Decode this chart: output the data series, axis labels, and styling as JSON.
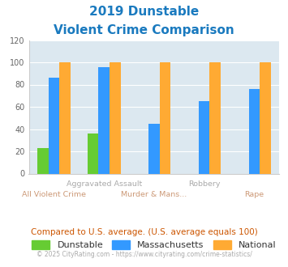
{
  "title_line1": "2019 Dunstable",
  "title_line2": "Violent Crime Comparison",
  "categories": [
    "All Violent Crime",
    "Aggravated Assault",
    "Murder & Mans...",
    "Robbery",
    "Rape"
  ],
  "dunstable": [
    23,
    36,
    0,
    0,
    0
  ],
  "massachusetts": [
    86,
    96,
    45,
    65,
    76
  ],
  "national": [
    100,
    100,
    100,
    100,
    100
  ],
  "color_dunstable": "#66cc33",
  "color_massachusetts": "#3399ff",
  "color_national": "#ffaa33",
  "color_title": "#1a7abf",
  "color_bg_chart": "#dce8f0",
  "color_bg_fig": "#ffffff",
  "color_upper_labels": "#aaaaaa",
  "color_lower_labels": "#cc9977",
  "color_compare_text": "#cc5500",
  "color_copyright": "#aaaaaa",
  "color_copyright_link": "#3399ff",
  "ylim": [
    0,
    120
  ],
  "yticks": [
    0,
    20,
    40,
    60,
    80,
    100,
    120
  ],
  "bar_width": 0.22,
  "footer_text": "Compared to U.S. average. (U.S. average equals 100)",
  "copyright_text1": "© 2025 CityRating.com - ",
  "copyright_text2": "https://www.cityrating.com/crime-statistics/",
  "legend_labels": [
    "Dunstable",
    "Massachusetts",
    "National"
  ]
}
